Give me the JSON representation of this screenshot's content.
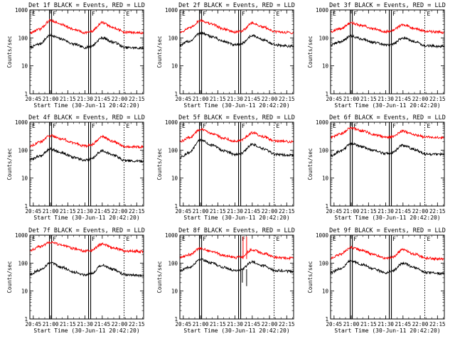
{
  "colors": {
    "events": "#000000",
    "lld": "#ff0000",
    "frame": "#000000"
  },
  "chart_data": [
    {
      "type": "line",
      "detector": "1f",
      "title": "Det 1f BLACK = Events, RED = LLD",
      "xlabel": "Start Time (30-Jun-11 20:42:20)",
      "ylabel": "Counts/sec",
      "yscale": "log",
      "ylim": [
        1,
        1000
      ],
      "xlim": [
        "20:42",
        "22:21"
      ],
      "xticks": [
        "20:45",
        "21:00",
        "21:15",
        "21:30",
        "21:45",
        "22:00",
        "22:15"
      ],
      "yticks": [
        "1",
        "10",
        "100",
        "1000"
      ],
      "markers": [
        {
          "label": "E",
          "time": "20:42"
        },
        {
          "label": "F",
          "time": "21:00"
        },
        {
          "label": "F",
          "time": "21:34"
        },
        {
          "label": "E",
          "time": "22:04"
        }
      ],
      "series": [
        {
          "name": "Events",
          "color": "black",
          "x": [
            "20:42",
            "20:50",
            "21:00",
            "21:10",
            "21:20",
            "21:30",
            "21:35",
            "21:45",
            "21:55",
            "22:05",
            "22:20"
          ],
          "values": [
            45,
            60,
            125,
            90,
            60,
            45,
            50,
            100,
            70,
            45,
            43
          ]
        },
        {
          "name": "LLD",
          "color": "red",
          "x": [
            "20:42",
            "20:50",
            "21:00",
            "21:10",
            "21:20",
            "21:30",
            "21:35",
            "21:45",
            "21:55",
            "22:05",
            "22:20"
          ],
          "values": [
            150,
            200,
            420,
            300,
            200,
            155,
            165,
            350,
            230,
            160,
            150
          ]
        }
      ]
    },
    {
      "type": "line",
      "detector": "2f",
      "title": "Det 2f BLACK = Events, RED = LLD",
      "xlabel": "Start Time (30-Jun-11 20:42:20)",
      "ylabel": "Counts/sec",
      "yscale": "log",
      "ylim": [
        1,
        1000
      ],
      "xlim": [
        "20:42",
        "22:21"
      ],
      "xticks": [
        "20:45",
        "21:00",
        "21:15",
        "21:30",
        "21:45",
        "22:00",
        "22:15"
      ],
      "yticks": [
        "1",
        "10",
        "100",
        "1000"
      ],
      "markers": [
        {
          "label": "E",
          "time": "20:42"
        },
        {
          "label": "F",
          "time": "21:00"
        },
        {
          "label": "F",
          "time": "21:34"
        },
        {
          "label": "E",
          "time": "22:04"
        }
      ],
      "series": [
        {
          "name": "Events",
          "color": "black",
          "x": [
            "20:42",
            "20:50",
            "21:00",
            "21:10",
            "21:20",
            "21:30",
            "21:35",
            "21:45",
            "21:55",
            "22:05",
            "22:20"
          ],
          "values": [
            55,
            75,
            150,
            110,
            75,
            55,
            60,
            120,
            85,
            55,
            50
          ]
        },
        {
          "name": "LLD",
          "color": "red",
          "x": [
            "20:42",
            "20:50",
            "21:00",
            "21:10",
            "21:20",
            "21:30",
            "21:35",
            "21:45",
            "21:55",
            "22:05",
            "22:20"
          ],
          "values": [
            160,
            220,
            420,
            310,
            210,
            160,
            170,
            340,
            240,
            165,
            155
          ]
        }
      ]
    },
    {
      "type": "line",
      "detector": "3f",
      "title": "Det 3f BLACK = Events, RED = LLD",
      "xlabel": "Start Time (30-Jun-11 20:42:20)",
      "ylabel": "Counts/sec",
      "yscale": "log",
      "ylim": [
        1,
        1000
      ],
      "xlim": [
        "20:42",
        "22:21"
      ],
      "xticks": [
        "20:45",
        "21:00",
        "21:15",
        "21:30",
        "21:45",
        "22:00",
        "22:15"
      ],
      "yticks": [
        "1",
        "10",
        "100",
        "1000"
      ],
      "markers": [
        {
          "label": "E",
          "time": "20:42"
        },
        {
          "label": "F",
          "time": "21:00"
        },
        {
          "label": "F",
          "time": "21:34"
        },
        {
          "label": "E",
          "time": "22:04"
        }
      ],
      "series": [
        {
          "name": "Events",
          "color": "black",
          "x": [
            "20:42",
            "20:50",
            "21:00",
            "21:10",
            "21:20",
            "21:30",
            "21:35",
            "21:45",
            "21:55",
            "22:05",
            "22:20"
          ],
          "values": [
            55,
            72,
            115,
            90,
            68,
            55,
            58,
            100,
            75,
            52,
            50
          ]
        },
        {
          "name": "LLD",
          "color": "red",
          "x": [
            "20:42",
            "20:50",
            "21:00",
            "21:10",
            "21:20",
            "21:30",
            "21:35",
            "21:45",
            "21:55",
            "22:05",
            "22:20"
          ],
          "values": [
            170,
            210,
            340,
            270,
            205,
            170,
            180,
            300,
            225,
            170,
            160
          ]
        }
      ]
    },
    {
      "type": "line",
      "detector": "4f",
      "title": "Det 4f BLACK = Events, RED = LLD",
      "xlabel": "Start Time (30-Jun-11 20:42:20)",
      "ylabel": "Counts/sec",
      "yscale": "log",
      "ylim": [
        1,
        1000
      ],
      "xlim": [
        "20:42",
        "22:21"
      ],
      "xticks": [
        "20:45",
        "21:00",
        "21:15",
        "21:30",
        "21:45",
        "22:00",
        "22:15"
      ],
      "yticks": [
        "1",
        "10",
        "100",
        "1000"
      ],
      "markers": [
        {
          "label": "E",
          "time": "20:42"
        },
        {
          "label": "F",
          "time": "21:00"
        },
        {
          "label": "F",
          "time": "21:34"
        },
        {
          "label": "E",
          "time": "22:04"
        }
      ],
      "series": [
        {
          "name": "Events",
          "color": "black",
          "x": [
            "20:42",
            "20:50",
            "21:00",
            "21:10",
            "21:20",
            "21:30",
            "21:35",
            "21:45",
            "21:55",
            "22:05",
            "22:20"
          ],
          "values": [
            45,
            60,
            110,
            80,
            55,
            43,
            47,
            95,
            65,
            42,
            40
          ]
        },
        {
          "name": "LLD",
          "color": "red",
          "x": [
            "20:42",
            "20:50",
            "21:00",
            "21:10",
            "21:20",
            "21:30",
            "21:35",
            "21:45",
            "21:55",
            "22:05",
            "22:20"
          ],
          "values": [
            140,
            190,
            330,
            250,
            180,
            140,
            150,
            300,
            200,
            135,
            130
          ]
        }
      ]
    },
    {
      "type": "line",
      "detector": "5f",
      "title": "Det 5f BLACK = Events, RED = LLD",
      "xlabel": "Start Time (30-Jun-11 20:42:20)",
      "ylabel": "Counts/sec",
      "yscale": "log",
      "ylim": [
        1,
        1000
      ],
      "xlim": [
        "20:42",
        "22:21"
      ],
      "xticks": [
        "20:45",
        "21:00",
        "21:15",
        "21:30",
        "21:45",
        "22:00",
        "22:15"
      ],
      "yticks": [
        "1",
        "10",
        "100",
        "1000"
      ],
      "markers": [
        {
          "label": "E",
          "time": "20:42"
        },
        {
          "label": "F",
          "time": "21:00"
        },
        {
          "label": "F",
          "time": "21:34"
        },
        {
          "label": "E",
          "time": "22:04"
        }
      ],
      "series": [
        {
          "name": "Events",
          "color": "black",
          "x": [
            "20:42",
            "20:50",
            "21:00",
            "21:10",
            "21:20",
            "21:30",
            "21:35",
            "21:45",
            "21:55",
            "22:05",
            "22:20"
          ],
          "values": [
            55,
            80,
            230,
            150,
            95,
            70,
            75,
            160,
            110,
            70,
            65
          ]
        },
        {
          "name": "LLD",
          "color": "red",
          "x": [
            "20:42",
            "20:50",
            "21:00",
            "21:10",
            "21:20",
            "21:30",
            "21:35",
            "21:45",
            "21:55",
            "22:05",
            "22:20"
          ],
          "values": [
            200,
            280,
            550,
            400,
            270,
            210,
            220,
            420,
            300,
            210,
            200
          ]
        }
      ]
    },
    {
      "type": "line",
      "detector": "6f",
      "title": "Det 6f BLACK = Events, RED = LLD",
      "xlabel": "Start Time (30-Jun-11 20:42:20)",
      "ylabel": "Counts/sec",
      "yscale": "log",
      "ylim": [
        1,
        1000
      ],
      "xlim": [
        "20:42",
        "22:21"
      ],
      "xticks": [
        "20:45",
        "21:00",
        "21:15",
        "21:30",
        "21:45",
        "22:00",
        "22:15"
      ],
      "yticks": [
        "1",
        "10",
        "100",
        "1000"
      ],
      "markers": [
        {
          "label": "E",
          "time": "20:42"
        },
        {
          "label": "F",
          "time": "21:00"
        },
        {
          "label": "F",
          "time": "21:34"
        },
        {
          "label": "E",
          "time": "22:04"
        }
      ],
      "series": [
        {
          "name": "Events",
          "color": "black",
          "x": [
            "20:42",
            "20:50",
            "21:00",
            "21:10",
            "21:20",
            "21:30",
            "21:35",
            "21:45",
            "21:55",
            "22:05",
            "22:20"
          ],
          "values": [
            60,
            90,
            170,
            130,
            95,
            75,
            80,
            150,
            105,
            72,
            70
          ]
        },
        {
          "name": "LLD",
          "color": "red",
          "x": [
            "20:42",
            "20:50",
            "21:00",
            "21:10",
            "21:20",
            "21:30",
            "21:35",
            "21:45",
            "21:55",
            "22:05",
            "22:20"
          ],
          "values": [
            280,
            370,
            620,
            480,
            360,
            290,
            300,
            480,
            360,
            290,
            280
          ]
        }
      ]
    },
    {
      "type": "line",
      "detector": "7f",
      "title": "Det 7f BLACK = Events, RED = LLD",
      "xlabel": "Start Time (30-Jun-11 20:42:20)",
      "ylabel": "Counts/sec",
      "yscale": "log",
      "ylim": [
        1,
        1000
      ],
      "xlim": [
        "20:42",
        "22:21"
      ],
      "xticks": [
        "20:45",
        "21:00",
        "21:15",
        "21:30",
        "21:45",
        "22:00",
        "22:15"
      ],
      "yticks": [
        "1",
        "10",
        "100",
        "1000"
      ],
      "markers": [
        {
          "label": "E",
          "time": "20:42"
        },
        {
          "label": "F",
          "time": "21:00"
        },
        {
          "label": "F",
          "time": "21:34"
        },
        {
          "label": "E",
          "time": "22:04"
        }
      ],
      "series": [
        {
          "name": "Events",
          "color": "black",
          "x": [
            "20:42",
            "20:50",
            "21:00",
            "21:10",
            "21:20",
            "21:30",
            "21:35",
            "21:45",
            "21:55",
            "22:05",
            "22:20"
          ],
          "values": [
            40,
            55,
            100,
            70,
            48,
            38,
            42,
            85,
            58,
            38,
            35
          ]
        },
        {
          "name": "LLD",
          "color": "red",
          "x": [
            "20:42",
            "20:50",
            "21:00",
            "21:10",
            "21:20",
            "21:30",
            "21:35",
            "21:45",
            "21:55",
            "22:05",
            "22:20"
          ],
          "values": [
            280,
            380,
            560,
            440,
            330,
            270,
            280,
            480,
            350,
            270,
            260
          ]
        }
      ]
    },
    {
      "type": "line",
      "detector": "8f",
      "title": "Det 8f BLACK = Events, RED = LLD",
      "xlabel": "Start Time (30-Jun-11 20:42:20)",
      "ylabel": "Counts/sec",
      "yscale": "log",
      "ylim": [
        1,
        1000
      ],
      "xlim": [
        "20:42",
        "22:21"
      ],
      "xticks": [
        "20:45",
        "21:00",
        "21:15",
        "21:30",
        "21:45",
        "22:00",
        "22:15"
      ],
      "yticks": [
        "1",
        "10",
        "100",
        "1000"
      ],
      "markers": [
        {
          "label": "E",
          "time": "20:42"
        },
        {
          "label": "F",
          "time": "21:00"
        },
        {
          "label": "F",
          "time": "21:34"
        },
        {
          "label": "E",
          "time": "22:04"
        }
      ],
      "series": [
        {
          "name": "Events",
          "color": "black",
          "x": [
            "20:42",
            "20:50",
            "21:00",
            "21:10",
            "21:20",
            "21:30",
            "21:35",
            "21:45",
            "21:55",
            "22:05",
            "22:20"
          ],
          "values": [
            55,
            70,
            140,
            100,
            70,
            55,
            58,
            110,
            80,
            55,
            50
          ]
        },
        {
          "name": "LLD",
          "color": "red",
          "x": [
            "20:42",
            "20:50",
            "21:00",
            "21:10",
            "21:20",
            "21:30",
            "21:35",
            "21:45",
            "21:55",
            "22:05",
            "22:20"
          ],
          "values": [
            160,
            200,
            340,
            260,
            190,
            155,
            165,
            300,
            220,
            160,
            150
          ]
        }
      ],
      "annotations": [
        "spikes near 21:37"
      ]
    },
    {
      "type": "line",
      "detector": "9f",
      "title": "Det 9f BLACK = Events, RED = LLD",
      "xlabel": "Start Time (30-Jun-11 20:42:20)",
      "ylabel": "Counts/sec",
      "yscale": "log",
      "ylim": [
        1,
        1000
      ],
      "xlim": [
        "20:42",
        "22:21"
      ],
      "xticks": [
        "20:45",
        "21:00",
        "21:15",
        "21:30",
        "21:45",
        "22:00",
        "22:15"
      ],
      "yticks": [
        "1",
        "10",
        "100",
        "1000"
      ],
      "markers": [
        {
          "label": "E",
          "time": "20:42"
        },
        {
          "label": "F",
          "time": "21:00"
        },
        {
          "label": "F",
          "time": "21:34"
        },
        {
          "label": "E",
          "time": "22:04"
        }
      ],
      "series": [
        {
          "name": "Events",
          "color": "black",
          "x": [
            "20:42",
            "20:50",
            "21:00",
            "21:10",
            "21:20",
            "21:30",
            "21:35",
            "21:45",
            "21:55",
            "22:05",
            "22:20"
          ],
          "values": [
            45,
            62,
            120,
            88,
            60,
            45,
            50,
            100,
            70,
            45,
            42
          ]
        },
        {
          "name": "LLD",
          "color": "red",
          "x": [
            "20:42",
            "20:50",
            "21:00",
            "21:10",
            "21:20",
            "21:30",
            "21:35",
            "21:45",
            "21:55",
            "22:05",
            "22:20"
          ],
          "values": [
            150,
            200,
            360,
            280,
            200,
            150,
            160,
            300,
            210,
            150,
            140
          ]
        }
      ]
    }
  ]
}
